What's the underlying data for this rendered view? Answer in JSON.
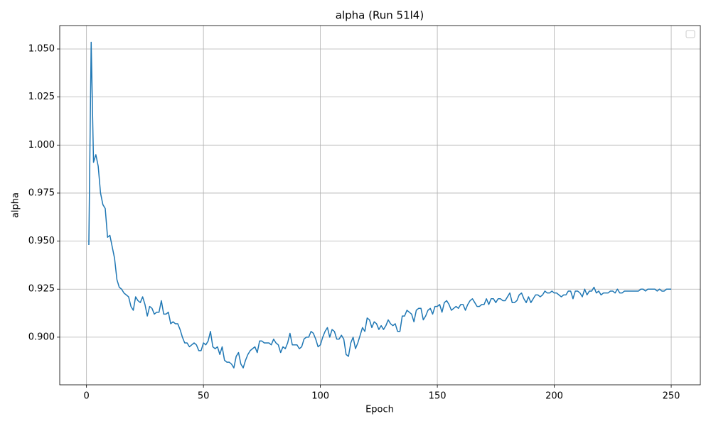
{
  "chart_data": {
    "type": "line",
    "title": "alpha (Run 51l4)",
    "x_label": "Epoch",
    "y_label": "alpha",
    "color": "#1f77b4",
    "grid": true,
    "legend": "upper right",
    "xlim": [
      -11.45,
      262.45
    ],
    "ylim": [
      0.8752,
      1.0622
    ],
    "xticks": [
      0,
      50,
      100,
      150,
      200,
      250
    ],
    "yticks": [
      {
        "value": 0.9,
        "label": "0.900"
      },
      {
        "value": 0.925,
        "label": "0.925"
      },
      {
        "value": 0.95,
        "label": "0.950"
      },
      {
        "value": 0.975,
        "label": "0.975"
      },
      {
        "value": 1.0,
        "label": "1.000"
      },
      {
        "value": 1.025,
        "label": "1.025"
      },
      {
        "value": 1.05,
        "label": "1.050"
      }
    ],
    "x": [
      1,
      2,
      3,
      4,
      5,
      6,
      7,
      8,
      9,
      10,
      11,
      12,
      13,
      14,
      15,
      16,
      17,
      18,
      19,
      20,
      21,
      22,
      23,
      24,
      25,
      26,
      27,
      28,
      29,
      30,
      31,
      32,
      33,
      34,
      35,
      36,
      37,
      38,
      39,
      40,
      41,
      42,
      43,
      44,
      45,
      46,
      47,
      48,
      49,
      50,
      51,
      52,
      53,
      54,
      55,
      56,
      57,
      58,
      59,
      60,
      61,
      62,
      63,
      64,
      65,
      66,
      67,
      68,
      69,
      70,
      71,
      72,
      73,
      74,
      75,
      76,
      77,
      78,
      79,
      80,
      81,
      82,
      83,
      84,
      85,
      86,
      87,
      88,
      89,
      90,
      91,
      92,
      93,
      94,
      95,
      96,
      97,
      98,
      99,
      100,
      101,
      102,
      103,
      104,
      105,
      106,
      107,
      108,
      109,
      110,
      111,
      112,
      113,
      114,
      115,
      116,
      117,
      118,
      119,
      120,
      121,
      122,
      123,
      124,
      125,
      126,
      127,
      128,
      129,
      130,
      131,
      132,
      133,
      134,
      135,
      136,
      137,
      138,
      139,
      140,
      141,
      142,
      143,
      144,
      145,
      146,
      147,
      148,
      149,
      150,
      151,
      152,
      153,
      154,
      155,
      156,
      157,
      158,
      159,
      160,
      161,
      162,
      163,
      164,
      165,
      166,
      167,
      168,
      169,
      170,
      171,
      172,
      173,
      174,
      175,
      176,
      177,
      178,
      179,
      180,
      181,
      182,
      183,
      184,
      185,
      186,
      187,
      188,
      189,
      190,
      191,
      192,
      193,
      194,
      195,
      196,
      197,
      198,
      199,
      200,
      201,
      202,
      203,
      204,
      205,
      206,
      207,
      208,
      209,
      210,
      211,
      212,
      213,
      214,
      215,
      216,
      217,
      218,
      219,
      220,
      221,
      222,
      223,
      224,
      225,
      226,
      227,
      228,
      229,
      230,
      231,
      232,
      233,
      234,
      235,
      236,
      237,
      238,
      239,
      240,
      241,
      242,
      243,
      244,
      245,
      246,
      247,
      248,
      249,
      250
    ],
    "values": [
      0.948,
      1.0535,
      0.991,
      0.995,
      0.989,
      0.975,
      0.969,
      0.967,
      0.952,
      0.953,
      0.947,
      0.941,
      0.93,
      0.926,
      0.925,
      0.923,
      0.922,
      0.921,
      0.916,
      0.914,
      0.921,
      0.919,
      0.918,
      0.921,
      0.917,
      0.911,
      0.916,
      0.915,
      0.912,
      0.913,
      0.913,
      0.919,
      0.912,
      0.912,
      0.913,
      0.907,
      0.908,
      0.907,
      0.907,
      0.904,
      0.9,
      0.897,
      0.897,
      0.895,
      0.896,
      0.897,
      0.896,
      0.893,
      0.893,
      0.897,
      0.896,
      0.898,
      0.903,
      0.895,
      0.894,
      0.895,
      0.891,
      0.895,
      0.888,
      0.887,
      0.887,
      0.886,
      0.884,
      0.89,
      0.892,
      0.886,
      0.884,
      0.888,
      0.891,
      0.893,
      0.894,
      0.895,
      0.892,
      0.898,
      0.898,
      0.897,
      0.897,
      0.897,
      0.896,
      0.899,
      0.897,
      0.896,
      0.892,
      0.895,
      0.894,
      0.897,
      0.902,
      0.896,
      0.896,
      0.896,
      0.894,
      0.895,
      0.899,
      0.9,
      0.9,
      0.903,
      0.902,
      0.899,
      0.895,
      0.896,
      0.9,
      0.903,
      0.905,
      0.9,
      0.904,
      0.903,
      0.899,
      0.899,
      0.901,
      0.899,
      0.891,
      0.89,
      0.897,
      0.9,
      0.894,
      0.897,
      0.901,
      0.905,
      0.903,
      0.91,
      0.909,
      0.905,
      0.908,
      0.907,
      0.904,
      0.906,
      0.904,
      0.906,
      0.909,
      0.907,
      0.906,
      0.907,
      0.903,
      0.903,
      0.911,
      0.911,
      0.914,
      0.913,
      0.912,
      0.908,
      0.914,
      0.915,
      0.915,
      0.909,
      0.911,
      0.914,
      0.915,
      0.912,
      0.916,
      0.916,
      0.917,
      0.913,
      0.918,
      0.919,
      0.917,
      0.914,
      0.915,
      0.916,
      0.915,
      0.917,
      0.917,
      0.914,
      0.917,
      0.919,
      0.92,
      0.918,
      0.916,
      0.916,
      0.917,
      0.917,
      0.92,
      0.917,
      0.92,
      0.92,
      0.918,
      0.92,
      0.92,
      0.919,
      0.919,
      0.921,
      0.923,
      0.918,
      0.918,
      0.919,
      0.922,
      0.923,
      0.92,
      0.918,
      0.921,
      0.918,
      0.92,
      0.922,
      0.922,
      0.921,
      0.922,
      0.924,
      0.923,
      0.923,
      0.924,
      0.923,
      0.923,
      0.922,
      0.921,
      0.922,
      0.922,
      0.924,
      0.924,
      0.92,
      0.924,
      0.924,
      0.923,
      0.921,
      0.925,
      0.922,
      0.924,
      0.924,
      0.926,
      0.923,
      0.924,
      0.922,
      0.923,
      0.923,
      0.923,
      0.924,
      0.924,
      0.923,
      0.925,
      0.923,
      0.923,
      0.924,
      0.924,
      0.924,
      0.924,
      0.924,
      0.924,
      0.924,
      0.925,
      0.925,
      0.924,
      0.925,
      0.925,
      0.925,
      0.925,
      0.924,
      0.925,
      0.924,
      0.924,
      0.925,
      0.925,
      0.925
    ]
  }
}
